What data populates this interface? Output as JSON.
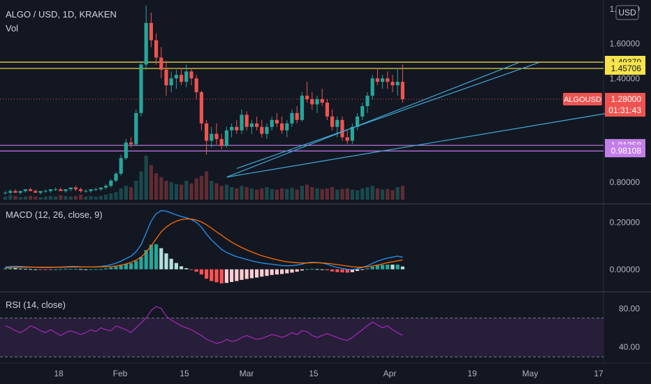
{
  "header": {
    "symbol_line": "ALGO / USD, 1D, KRAKEN",
    "vol_label": "Vol",
    "currency_button": "USD"
  },
  "colors": {
    "background": "#131722",
    "up": "#26a69a",
    "down": "#ef5350",
    "hline_yellow": "#f7e34c",
    "hline_purple": "#c47ee8",
    "trendline": "#3fa9d6",
    "macd_line": "#2196f3",
    "signal_line": "#ff6d00",
    "rsi_line": "#9c27b0",
    "rsi_band": "#2a1f3d",
    "text": "#b2b5be",
    "grid": "#2a2e39"
  },
  "chart_data": [
    {
      "type": "candlestick",
      "title": "ALGO / USD, 1D, KRAKEN",
      "symbol": "ALGOUSD",
      "last_price": "1.28000",
      "countdown": "01:31:43",
      "y_ticks": [
        "1.80000",
        "1.60000",
        "1.40000",
        "0.80000"
      ],
      "ylim": [
        0.7,
        1.82
      ],
      "x_ticks": [
        "18",
        "Feb",
        "15",
        "Mar",
        "15",
        "Apr",
        "19",
        "May",
        "17"
      ],
      "horizontal_lines": [
        {
          "value": 1.4937,
          "label": "1.49370",
          "color": "yellow"
        },
        {
          "value": 1.45706,
          "label": "1.45706",
          "color": "yellow"
        },
        {
          "value": 1.01358,
          "label": "1.01358",
          "color": "purple"
        },
        {
          "value": 0.98108,
          "label": "0.98108",
          "color": "purple"
        }
      ],
      "candles": [
        [
          0.74,
          0.75,
          0.73,
          0.74
        ],
        [
          0.74,
          0.76,
          0.73,
          0.75
        ],
        [
          0.75,
          0.76,
          0.74,
          0.74
        ],
        [
          0.74,
          0.75,
          0.73,
          0.75
        ],
        [
          0.75,
          0.76,
          0.74,
          0.76
        ],
        [
          0.76,
          0.77,
          0.75,
          0.75
        ],
        [
          0.75,
          0.76,
          0.74,
          0.74
        ],
        [
          0.74,
          0.75,
          0.73,
          0.75
        ],
        [
          0.75,
          0.76,
          0.74,
          0.75
        ],
        [
          0.75,
          0.76,
          0.74,
          0.76
        ],
        [
          0.76,
          0.77,
          0.75,
          0.76
        ],
        [
          0.76,
          0.77,
          0.75,
          0.75
        ],
        [
          0.75,
          0.76,
          0.74,
          0.76
        ],
        [
          0.76,
          0.77,
          0.75,
          0.77
        ],
        [
          0.77,
          0.78,
          0.75,
          0.76
        ],
        [
          0.76,
          0.77,
          0.74,
          0.75
        ],
        [
          0.75,
          0.76,
          0.74,
          0.75
        ],
        [
          0.75,
          0.76,
          0.74,
          0.76
        ],
        [
          0.76,
          0.77,
          0.75,
          0.76
        ],
        [
          0.76,
          0.77,
          0.75,
          0.77
        ],
        [
          0.77,
          0.79,
          0.76,
          0.78
        ],
        [
          0.78,
          0.82,
          0.77,
          0.81
        ],
        [
          0.81,
          0.86,
          0.8,
          0.85
        ],
        [
          0.85,
          0.96,
          0.84,
          0.94
        ],
        [
          0.94,
          1.05,
          0.93,
          1.03
        ],
        [
          1.03,
          1.06,
          1.0,
          1.02
        ],
        [
          1.02,
          1.22,
          1.01,
          1.2
        ],
        [
          1.2,
          1.5,
          1.18,
          1.48
        ],
        [
          1.48,
          1.82,
          1.45,
          1.72
        ],
        [
          1.72,
          1.78,
          1.58,
          1.62
        ],
        [
          1.62,
          1.66,
          1.48,
          1.52
        ],
        [
          1.52,
          1.58,
          1.4,
          1.45
        ],
        [
          1.45,
          1.5,
          1.3,
          1.36
        ],
        [
          1.36,
          1.44,
          1.32,
          1.4
        ],
        [
          1.4,
          1.45,
          1.34,
          1.42
        ],
        [
          1.42,
          1.46,
          1.36,
          1.38
        ],
        [
          1.38,
          1.48,
          1.35,
          1.44
        ],
        [
          1.44,
          1.46,
          1.36,
          1.4
        ],
        [
          1.4,
          1.42,
          1.28,
          1.32
        ],
        [
          1.32,
          1.33,
          1.1,
          1.14
        ],
        [
          1.14,
          1.16,
          0.96,
          1.04
        ],
        [
          1.04,
          1.12,
          1.0,
          1.08
        ],
        [
          1.08,
          1.14,
          1.02,
          1.05
        ],
        [
          1.05,
          1.08,
          0.99,
          1.01
        ],
        [
          1.01,
          1.12,
          1.0,
          1.1
        ],
        [
          1.1,
          1.14,
          1.06,
          1.12
        ],
        [
          1.12,
          1.16,
          1.08,
          1.1
        ],
        [
          1.1,
          1.22,
          1.08,
          1.19
        ],
        [
          1.19,
          1.21,
          1.1,
          1.12
        ],
        [
          1.12,
          1.16,
          1.08,
          1.14
        ],
        [
          1.14,
          1.18,
          1.1,
          1.12
        ],
        [
          1.12,
          1.16,
          1.06,
          1.08
        ],
        [
          1.08,
          1.14,
          1.05,
          1.12
        ],
        [
          1.12,
          1.18,
          1.1,
          1.16
        ],
        [
          1.16,
          1.2,
          1.12,
          1.14
        ],
        [
          1.14,
          1.18,
          1.08,
          1.1
        ],
        [
          1.1,
          1.16,
          1.06,
          1.14
        ],
        [
          1.14,
          1.22,
          1.12,
          1.2
        ],
        [
          1.2,
          1.24,
          1.14,
          1.16
        ],
        [
          1.16,
          1.32,
          1.15,
          1.3
        ],
        [
          1.3,
          1.38,
          1.26,
          1.28
        ],
        [
          1.28,
          1.32,
          1.22,
          1.25
        ],
        [
          1.25,
          1.3,
          1.2,
          1.28
        ],
        [
          1.28,
          1.34,
          1.24,
          1.26
        ],
        [
          1.26,
          1.28,
          1.16,
          1.18
        ],
        [
          1.18,
          1.22,
          1.1,
          1.12
        ],
        [
          1.12,
          1.18,
          1.06,
          1.16
        ],
        [
          1.16,
          1.18,
          1.04,
          1.06
        ],
        [
          1.06,
          1.1,
          1.02,
          1.04
        ],
        [
          1.04,
          1.14,
          1.02,
          1.12
        ],
        [
          1.12,
          1.2,
          1.1,
          1.18
        ],
        [
          1.18,
          1.26,
          1.16,
          1.24
        ],
        [
          1.24,
          1.32,
          1.2,
          1.3
        ],
        [
          1.3,
          1.42,
          1.28,
          1.4
        ],
        [
          1.4,
          1.46,
          1.36,
          1.38
        ],
        [
          1.38,
          1.42,
          1.34,
          1.4
        ],
        [
          1.4,
          1.44,
          1.34,
          1.38
        ],
        [
          1.38,
          1.42,
          1.32,
          1.36
        ],
        [
          1.36,
          1.46,
          1.3,
          1.38
        ],
        [
          1.38,
          1.48,
          1.26,
          1.28
        ]
      ],
      "volume": [
        0.05,
        0.07,
        0.06,
        0.04,
        0.05,
        0.06,
        0.05,
        0.04,
        0.05,
        0.06,
        0.05,
        0.07,
        0.06,
        0.05,
        0.06,
        0.08,
        0.05,
        0.06,
        0.05,
        0.06,
        0.08,
        0.1,
        0.12,
        0.18,
        0.22,
        0.2,
        0.3,
        0.45,
        0.7,
        0.55,
        0.42,
        0.36,
        0.3,
        0.28,
        0.25,
        0.24,
        0.3,
        0.26,
        0.34,
        0.38,
        0.45,
        0.3,
        0.26,
        0.22,
        0.24,
        0.2,
        0.18,
        0.22,
        0.2,
        0.18,
        0.16,
        0.18,
        0.2,
        0.17,
        0.16,
        0.18,
        0.17,
        0.19,
        0.16,
        0.22,
        0.24,
        0.2,
        0.18,
        0.17,
        0.18,
        0.2,
        0.16,
        0.17,
        0.18,
        0.16,
        0.15,
        0.18,
        0.2,
        0.22,
        0.18,
        0.16,
        0.17,
        0.15,
        0.2,
        0.22
      ],
      "trendlines": [
        {
          "from": [
            44,
            0.83
          ],
          "to": [
            102,
            1.49
          ]
        },
        {
          "from": [
            46,
            0.88
          ],
          "to": [
            106,
            1.49
          ]
        },
        {
          "from": [
            44,
            0.83
          ],
          "to": [
            120,
            1.2
          ]
        }
      ]
    },
    {
      "type": "line",
      "title": "MACD (12, 26, close, 9)",
      "y_ticks": [
        "0.20000",
        "0.00000"
      ],
      "ylim": [
        -0.09,
        0.27
      ],
      "series": [
        {
          "key": "macd",
          "values": [
            0.01,
            0.012,
            0.013,
            0.012,
            0.011,
            0.01,
            0.009,
            0.008,
            0.008,
            0.008,
            0.009,
            0.01,
            0.011,
            0.012,
            0.012,
            0.011,
            0.01,
            0.01,
            0.011,
            0.012,
            0.015,
            0.02,
            0.026,
            0.035,
            0.046,
            0.056,
            0.075,
            0.105,
            0.155,
            0.205,
            0.237,
            0.25,
            0.248,
            0.24,
            0.232,
            0.225,
            0.22,
            0.212,
            0.2,
            0.18,
            0.15,
            0.125,
            0.105,
            0.085,
            0.072,
            0.062,
            0.054,
            0.048,
            0.042,
            0.036,
            0.031,
            0.027,
            0.024,
            0.022,
            0.019,
            0.016,
            0.015,
            0.016,
            0.018,
            0.022,
            0.028,
            0.03,
            0.029,
            0.027,
            0.022,
            0.014,
            0.008,
            0.004,
            0.0,
            -0.001,
            0.002,
            0.008,
            0.015,
            0.025,
            0.035,
            0.042,
            0.048,
            0.052,
            0.056,
            0.052
          ]
        },
        {
          "key": "signal",
          "values": [
            0.006,
            0.007,
            0.008,
            0.009,
            0.009,
            0.009,
            0.009,
            0.009,
            0.009,
            0.009,
            0.009,
            0.009,
            0.009,
            0.01,
            0.01,
            0.01,
            0.01,
            0.01,
            0.01,
            0.011,
            0.011,
            0.012,
            0.014,
            0.018,
            0.023,
            0.03,
            0.039,
            0.052,
            0.073,
            0.1,
            0.13,
            0.16,
            0.18,
            0.195,
            0.205,
            0.212,
            0.215,
            0.214,
            0.21,
            0.202,
            0.19,
            0.175,
            0.16,
            0.145,
            0.13,
            0.116,
            0.104,
            0.093,
            0.083,
            0.074,
            0.066,
            0.058,
            0.052,
            0.046,
            0.041,
            0.036,
            0.032,
            0.03,
            0.028,
            0.027,
            0.027,
            0.028,
            0.028,
            0.027,
            0.026,
            0.023,
            0.02,
            0.017,
            0.014,
            0.011,
            0.009,
            0.009,
            0.011,
            0.014,
            0.018,
            0.023,
            0.028,
            0.032,
            0.036,
            0.04
          ]
        }
      ]
    },
    {
      "type": "line",
      "title": "RSI (14, close)",
      "y_ticks": [
        "80.00",
        "40.00"
      ],
      "ylim": [
        25,
        95
      ],
      "band": [
        30,
        70
      ],
      "values": [
        62,
        60,
        57,
        55,
        58,
        62,
        60,
        57,
        55,
        58,
        55,
        52,
        55,
        57,
        55,
        53,
        55,
        58,
        56,
        60,
        58,
        57,
        62,
        60,
        58,
        55,
        60,
        65,
        70,
        78,
        82,
        80,
        72,
        68,
        65,
        62,
        60,
        58,
        55,
        52,
        48,
        46,
        44,
        45,
        48,
        46,
        47,
        50,
        52,
        50,
        48,
        49,
        51,
        53,
        52,
        50,
        52,
        55,
        53,
        57,
        56,
        52,
        50,
        52,
        54,
        52,
        50,
        48,
        47,
        50,
        54,
        58,
        62,
        66,
        63,
        60,
        62,
        58,
        55,
        52
      ]
    }
  ]
}
